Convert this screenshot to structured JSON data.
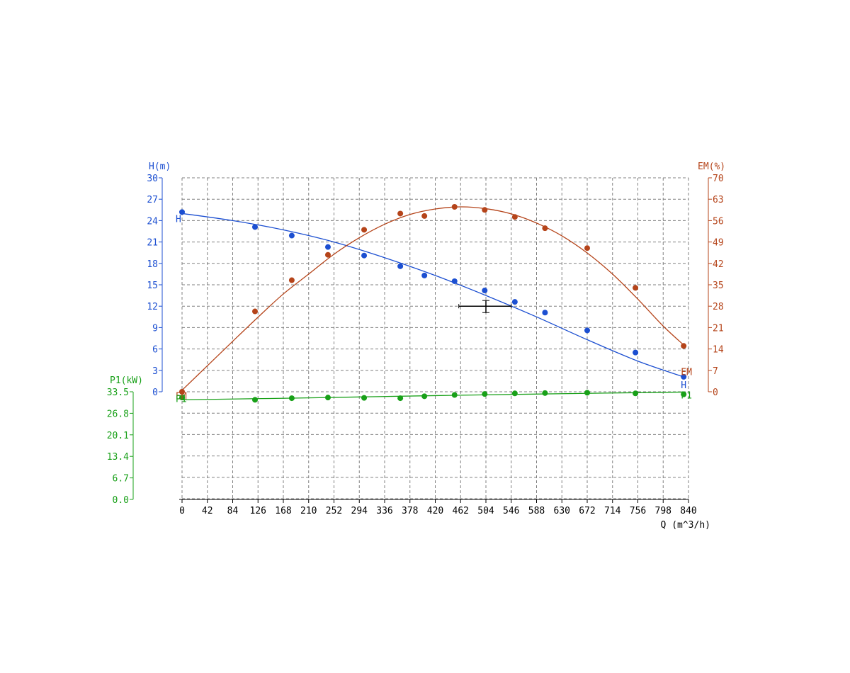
{
  "chart_data": {
    "type": "line",
    "x_label": "Q (m^3/h)",
    "x_range": [
      0,
      840
    ],
    "x_ticks": [
      0,
      42,
      84,
      126,
      168,
      210,
      252,
      294,
      336,
      378,
      420,
      462,
      504,
      546,
      588,
      630,
      672,
      714,
      756,
      798,
      840
    ],
    "grid": true,
    "axes": {
      "H": {
        "label": "H(m)",
        "range": [
          0,
          30
        ],
        "ticks": [
          0,
          3,
          6,
          9,
          12,
          15,
          18,
          21,
          24,
          27,
          30
        ],
        "color": "#1c4fd1"
      },
      "EM": {
        "label": "EM(%)",
        "range": [
          0,
          70
        ],
        "ticks": [
          0,
          7,
          14,
          21,
          28,
          35,
          42,
          49,
          56,
          63,
          70
        ],
        "color": "#b5441a"
      },
      "P1": {
        "label": "P1(kW)",
        "range": [
          0,
          33.5
        ],
        "ticks": [
          "0.0",
          "6.7",
          "13.4",
          "20.1",
          "26.8",
          "33.5"
        ],
        "color": "#18a018"
      }
    },
    "series": [
      {
        "name": "H",
        "axis": "H",
        "color": "#1c4fd1",
        "points": [
          [
            0,
            25.2
          ],
          [
            121,
            23.1
          ],
          [
            182,
            21.9
          ],
          [
            242,
            20.3
          ],
          [
            302,
            19.1
          ],
          [
            362,
            17.6
          ],
          [
            402,
            16.3
          ],
          [
            452,
            15.5
          ],
          [
            502,
            14.2
          ],
          [
            552,
            12.6
          ],
          [
            602,
            11.1
          ],
          [
            672,
            8.6
          ],
          [
            752,
            5.5
          ],
          [
            832,
            2.1
          ]
        ],
        "curve": [
          [
            0,
            25.0
          ],
          [
            84,
            24.0
          ],
          [
            168,
            22.7
          ],
          [
            252,
            21.0
          ],
          [
            336,
            18.8
          ],
          [
            420,
            16.3
          ],
          [
            504,
            13.5
          ],
          [
            588,
            10.5
          ],
          [
            672,
            7.3
          ],
          [
            756,
            4.3
          ],
          [
            835,
            2.0
          ]
        ]
      },
      {
        "name": "EM",
        "axis": "EM",
        "color": "#b5441a",
        "points": [
          [
            0,
            0
          ],
          [
            121,
            26.3
          ],
          [
            182,
            36.5
          ],
          [
            242,
            44.8
          ],
          [
            302,
            53.0
          ],
          [
            362,
            58.3
          ],
          [
            402,
            57.5
          ],
          [
            452,
            60.5
          ],
          [
            502,
            59.5
          ],
          [
            552,
            57.2
          ],
          [
            602,
            53.5
          ],
          [
            672,
            47.0
          ],
          [
            752,
            34.0
          ],
          [
            832,
            15.0
          ]
        ],
        "curve": [
          [
            0,
            0.5
          ],
          [
            42,
            8.5
          ],
          [
            84,
            16.5
          ],
          [
            126,
            24.4
          ],
          [
            168,
            32.0
          ],
          [
            210,
            38.5
          ],
          [
            252,
            45.0
          ],
          [
            294,
            50.4
          ],
          [
            336,
            54.8
          ],
          [
            378,
            58.0
          ],
          [
            420,
            59.8
          ],
          [
            462,
            60.5
          ],
          [
            504,
            59.9
          ],
          [
            546,
            58.2
          ],
          [
            588,
            55.2
          ],
          [
            630,
            51.0
          ],
          [
            672,
            45.4
          ],
          [
            714,
            38.5
          ],
          [
            756,
            30.3
          ],
          [
            798,
            21.5
          ],
          [
            832,
            15.3
          ]
        ]
      },
      {
        "name": "P1",
        "axis": "P1",
        "color": "#18a018",
        "points": [
          [
            0,
            31.7
          ],
          [
            121,
            31.0
          ],
          [
            182,
            31.5
          ],
          [
            242,
            31.7
          ],
          [
            302,
            31.6
          ],
          [
            362,
            31.5
          ],
          [
            402,
            32.1
          ],
          [
            452,
            32.5
          ],
          [
            502,
            32.8
          ],
          [
            552,
            33.0
          ],
          [
            602,
            33.1
          ],
          [
            672,
            33.2
          ],
          [
            752,
            33.0
          ],
          [
            832,
            32.7
          ]
        ],
        "curve": [
          [
            0,
            31.0
          ],
          [
            210,
            31.6
          ],
          [
            420,
            32.3
          ],
          [
            630,
            32.9
          ],
          [
            832,
            33.4
          ]
        ]
      }
    ],
    "curve_labels": [
      {
        "text": "H",
        "series": "H",
        "anchor": [
          0,
          23.8
        ]
      },
      {
        "text": "H",
        "series": "H",
        "anchor": [
          838,
          0.5
        ]
      },
      {
        "text": "EM",
        "series": "EM",
        "anchor": [
          0,
          -2.4
        ]
      },
      {
        "text": "EM",
        "series": "EM",
        "anchor": [
          838,
          5.4
        ]
      },
      {
        "text": "P1",
        "series": "P1",
        "anchor": [
          0,
          30.3
        ]
      },
      {
        "text": "P1",
        "series": "P1",
        "anchor": [
          838,
          31.4
        ]
      }
    ],
    "operating_point": {
      "q": 504,
      "h": 12,
      "q_from": 459,
      "q_to": 546,
      "h_from": 11.1,
      "h_to": 12.8,
      "color": "#000000"
    }
  }
}
